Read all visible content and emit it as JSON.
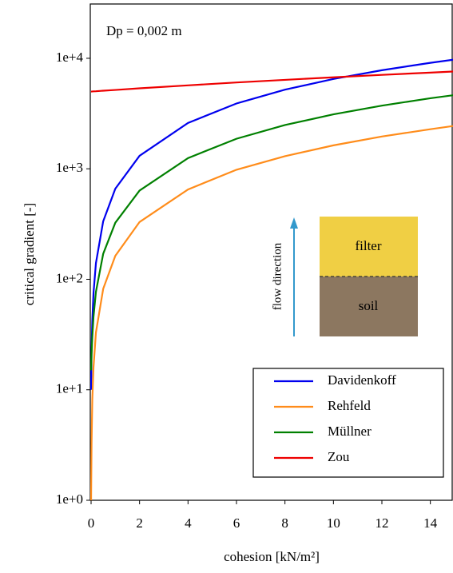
{
  "chart_data": {
    "type": "line",
    "annotation": "Dp = 0,002 m",
    "xlabel": "cohesion [kN/m²]",
    "ylabel": "critical gradient [-]",
    "x": [
      0,
      0.02,
      0.05,
      0.1,
      0.2,
      0.5,
      1,
      2,
      4,
      6,
      8,
      10,
      12,
      14,
      15
    ],
    "series": [
      {
        "name": "Davidenkoff",
        "color": "#0000ee",
        "values": [
          10,
          23,
          42,
          75,
          140,
          335,
          660,
          1310,
          2600,
          3900,
          5200,
          6500,
          7800,
          9100,
          9750
        ]
      },
      {
        "name": "Rehfeld",
        "color": "#ff8c1a",
        "values": [
          1,
          3.3,
          8.2,
          16,
          33,
          82,
          163,
          330,
          650,
          980,
          1300,
          1630,
          1960,
          2280,
          2450
        ]
      },
      {
        "name": "Müllner",
        "color": "#008000",
        "values": [
          15,
          21,
          30,
          46,
          77,
          170,
          325,
          635,
          1250,
          1870,
          2490,
          3110,
          3730,
          4350,
          4650
        ]
      },
      {
        "name": "Zou",
        "color": "#ee0000",
        "values": [
          5000,
          5000,
          5010,
          5020,
          5030,
          5090,
          5170,
          5350,
          5690,
          6040,
          6380,
          6730,
          7080,
          7420,
          7600
        ]
      }
    ],
    "xlim": [
      0,
      15
    ],
    "xticks": [
      0,
      2,
      4,
      6,
      8,
      10,
      12,
      14
    ],
    "ylim": [
      1,
      31000
    ],
    "ylog": true,
    "yticks": [
      {
        "value": 1,
        "label": "1e+0"
      },
      {
        "value": 10,
        "label": "1e+1"
      },
      {
        "value": 100,
        "label": "1e+2"
      },
      {
        "value": 1000,
        "label": "1e+3"
      },
      {
        "value": 10000,
        "label": "1e+4"
      }
    ],
    "legend": "lower right",
    "inset": {
      "arrow_label": "flow direction",
      "top_label": "filter",
      "bottom_label": "soil"
    }
  }
}
